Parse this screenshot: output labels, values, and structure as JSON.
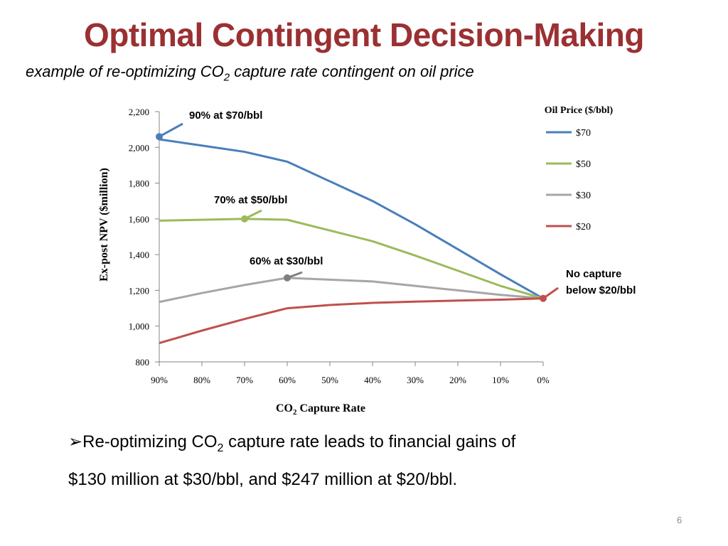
{
  "slide": {
    "title": "Optimal Contingent Decision-Making",
    "subtitle_pre": "example of re-optimizing CO",
    "subtitle_sub": "2",
    "subtitle_post": " capture rate contingent on oil price",
    "bullet_marker": "➢",
    "bullet_part1": "Re-optimizing CO",
    "bullet_sub": "2",
    "bullet_part2": " capture rate leads to financial gains of",
    "bullet_line2": "$130 million at $30/bbl, and $247 million at $20/bbl.",
    "page_number": "6"
  },
  "chart_data": {
    "type": "line",
    "ylabel": "Ex-post NPV ($million)",
    "xlabel_pre": "CO",
    "xlabel_sub": "2",
    "xlabel_post": " Capture Rate",
    "legend_title": "Oil Price ($/bbl)",
    "legend_position": "right",
    "grid": false,
    "categories": [
      "90%",
      "80%",
      "70%",
      "60%",
      "50%",
      "40%",
      "30%",
      "20%",
      "10%",
      "0%"
    ],
    "x": [
      90,
      80,
      70,
      60,
      50,
      40,
      30,
      20,
      10,
      0
    ],
    "xlim": [
      90,
      0
    ],
    "ylim": [
      800,
      2200
    ],
    "yticks": [
      800,
      1000,
      1200,
      1400,
      1600,
      1800,
      2000,
      2200
    ],
    "ytick_labels": [
      "800",
      "1,000",
      "1,200",
      "1,400",
      "1,600",
      "1,800",
      "2,000",
      "2,200"
    ],
    "series": [
      {
        "name": "$70",
        "color": "#4a7ebb",
        "values": [
          2045,
          2010,
          1975,
          1920,
          1810,
          1700,
          1570,
          1430,
          1290,
          1155
        ]
      },
      {
        "name": "$50",
        "color": "#9bbb59",
        "values": [
          1590,
          1595,
          1600,
          1595,
          1535,
          1475,
          1395,
          1310,
          1225,
          1155
        ]
      },
      {
        "name": "$30",
        "color": "#a6a6a6",
        "values": [
          1135,
          1185,
          1230,
          1270,
          1260,
          1250,
          1225,
          1200,
          1175,
          1155
        ]
      },
      {
        "name": "$20",
        "color": "#c0504d",
        "values": [
          905,
          975,
          1040,
          1100,
          1118,
          1130,
          1137,
          1143,
          1148,
          1155
        ]
      }
    ],
    "annotations": [
      {
        "text": "90% at $70/bbl",
        "series": "$70",
        "x": 90,
        "y": 2060,
        "color": "#4a7ebb"
      },
      {
        "text": "70% at $50/bbl",
        "series": "$50",
        "x": 70,
        "y": 1600,
        "color": "#9bbb59"
      },
      {
        "text": "60% at $30/bbl",
        "series": "$30",
        "x": 60,
        "y": 1270,
        "color": "#7f7f7f"
      },
      {
        "text_line1": "No capture",
        "text_line2": "below $20/bbl",
        "series": "$20",
        "x": 0,
        "y": 1155,
        "color": "#c0504d"
      }
    ]
  }
}
